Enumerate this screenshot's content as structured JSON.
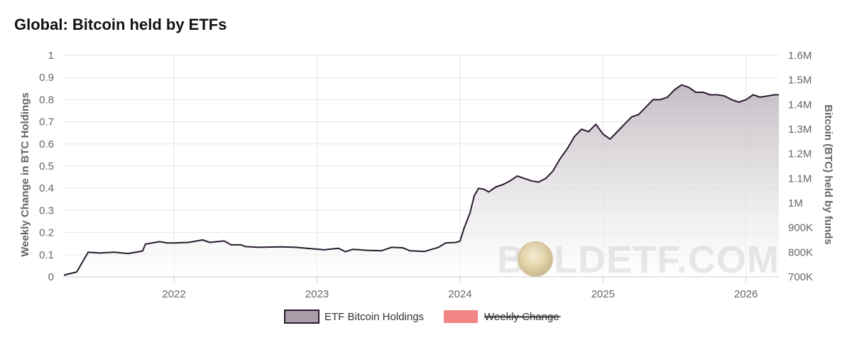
{
  "chart_data": {
    "type": "area",
    "title": "Global: Bitcoin held by ETFs",
    "y_left_label": "Weekly Change in BTC Holdings",
    "y_right_label": "Bitcoin (BTC) held by funds",
    "y_left_ticks": [
      "0",
      "0.1",
      "0.2",
      "0.3",
      "0.4",
      "0.5",
      "0.6",
      "0.7",
      "0.8",
      "0.9",
      "1"
    ],
    "y_right_ticks": [
      "700K",
      "800K",
      "900K",
      "1M",
      "1.1M",
      "1.2M",
      "1.3M",
      "1.4M",
      "1.5M",
      "1.6M"
    ],
    "y_left_range": [
      0,
      1
    ],
    "y_right_range": [
      700000,
      1600000
    ],
    "x_ticks": [
      "2022",
      "2023",
      "2024",
      "2025",
      "2026"
    ],
    "x_range": [
      2021.23,
      2026.23
    ],
    "grid": true,
    "legend_position": "bottom-center",
    "watermark": "BOLDETF.COM",
    "series": [
      {
        "name": "ETF Bitcoin Holdings",
        "axis": "right",
        "line_color": "#2a1a2e",
        "fill_color": "#a89ea8",
        "x": [
          2021.23,
          2021.32,
          2021.4,
          2021.48,
          2021.58,
          2021.68,
          2021.78,
          2021.8,
          2021.9,
          2021.95,
          2022.0,
          2022.1,
          2022.2,
          2022.25,
          2022.35,
          2022.4,
          2022.47,
          2022.5,
          2022.6,
          2022.75,
          2022.85,
          2022.95,
          2023.05,
          2023.15,
          2023.2,
          2023.25,
          2023.35,
          2023.45,
          2023.52,
          2023.6,
          2023.65,
          2023.75,
          2023.85,
          2023.9,
          2023.97,
          2024.0,
          2024.03,
          2024.07,
          2024.1,
          2024.13,
          2024.17,
          2024.2,
          2024.25,
          2024.3,
          2024.35,
          2024.4,
          2024.45,
          2024.5,
          2024.55,
          2024.6,
          2024.65,
          2024.7,
          2024.75,
          2024.8,
          2024.85,
          2024.9,
          2024.95,
          2025.0,
          2025.05,
          2025.1,
          2025.15,
          2025.2,
          2025.25,
          2025.3,
          2025.35,
          2025.4,
          2025.45,
          2025.5,
          2025.55,
          2025.6,
          2025.65,
          2025.7,
          2025.75,
          2025.8,
          2025.85,
          2025.9,
          2025.95,
          2026.0,
          2026.05,
          2026.1,
          2026.15,
          2026.2,
          2026.23
        ],
        "values": [
          707000,
          720000,
          800000,
          797000,
          800000,
          795000,
          805000,
          833000,
          843000,
          838000,
          838000,
          840000,
          850000,
          840000,
          846000,
          830000,
          830000,
          823000,
          820000,
          822000,
          820000,
          815000,
          810000,
          816000,
          802000,
          812000,
          808000,
          806000,
          820000,
          818000,
          806000,
          803000,
          820000,
          838000,
          840000,
          845000,
          900000,
          960000,
          1030000,
          1060000,
          1055000,
          1045000,
          1065000,
          1075000,
          1090000,
          1110000,
          1100000,
          1090000,
          1085000,
          1100000,
          1130000,
          1180000,
          1220000,
          1270000,
          1300000,
          1290000,
          1320000,
          1280000,
          1260000,
          1290000,
          1320000,
          1350000,
          1360000,
          1390000,
          1420000,
          1420000,
          1430000,
          1460000,
          1480000,
          1470000,
          1450000,
          1450000,
          1440000,
          1440000,
          1435000,
          1420000,
          1410000,
          1420000,
          1440000,
          1430000,
          1435000,
          1440000,
          1440000
        ]
      },
      {
        "name": "Weekly Change",
        "axis": "left",
        "hidden": true,
        "line_color": "#f28585",
        "fill_color": "#f28585",
        "values": []
      }
    ]
  }
}
